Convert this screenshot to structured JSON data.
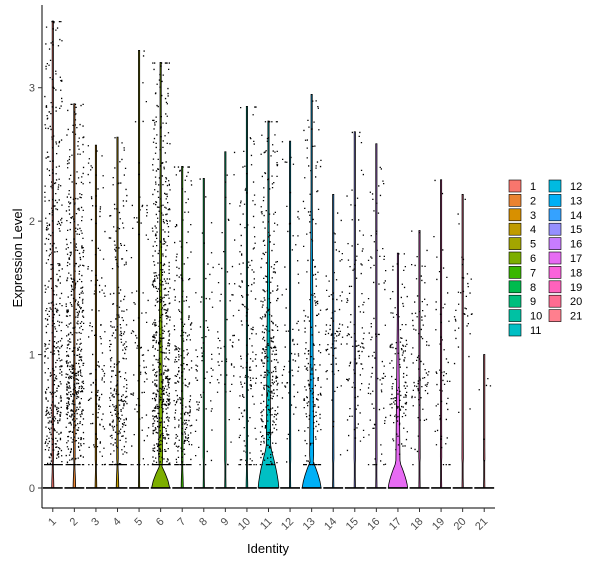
{
  "chart_data": {
    "type": "violin",
    "xlabel": "Identity",
    "ylabel": "Expression Level",
    "ylim": [
      -0.15,
      3.62
    ],
    "yticks": [
      0,
      1,
      2,
      3
    ],
    "categories": [
      "1",
      "2",
      "3",
      "4",
      "5",
      "6",
      "7",
      "8",
      "9",
      "10",
      "11",
      "12",
      "13",
      "14",
      "15",
      "16",
      "17",
      "18",
      "19",
      "20",
      "21"
    ],
    "colors": [
      "#F8766D",
      "#EA8331",
      "#D89000",
      "#C09B00",
      "#A3A500",
      "#7CAE00",
      "#39B600",
      "#00BB4E",
      "#00BF7D",
      "#00C1A3",
      "#00BFC4",
      "#00BAE0",
      "#00B0F6",
      "#35A2FF",
      "#9590FF",
      "#C77CFF",
      "#E76BF3",
      "#FA62DB",
      "#FF62BC",
      "#FF6C91",
      "#FF7F8E"
    ],
    "max_values": [
      3.5,
      2.88,
      2.57,
      2.63,
      3.28,
      3.19,
      2.41,
      2.32,
      2.52,
      2.86,
      2.75,
      2.6,
      2.95,
      2.2,
      2.67,
      2.58,
      1.76,
      1.93,
      2.31,
      2.2,
      1.0
    ],
    "violin_halfwidth": [
      0.05,
      0.06,
      0.04,
      0.06,
      0.03,
      0.42,
      0.05,
      0.03,
      0.03,
      0.04,
      0.48,
      0.03,
      0.44,
      0.03,
      0.03,
      0.03,
      0.45,
      0.03,
      0.03,
      0.03,
      0.03
    ],
    "violin_hump_top": [
      0.2,
      0.2,
      0.2,
      0.2,
      0.2,
      0.16,
      0.2,
      0.2,
      0.2,
      0.2,
      0.32,
      0.2,
      0.2,
      0.2,
      0.2,
      0.2,
      0.2,
      0.2,
      0.2,
      0.2,
      0.2
    ],
    "point_counts": [
      520,
      560,
      130,
      290,
      90,
      640,
      260,
      70,
      60,
      160,
      330,
      70,
      200,
      80,
      110,
      90,
      130,
      90,
      60,
      40,
      6
    ],
    "point_center": [
      0.7,
      0.9,
      0.9,
      0.7,
      1.1,
      0.9,
      0.7,
      1.0,
      1.1,
      1.0,
      1.0,
      1.1,
      0.9,
      1.2,
      1.1,
      1.0,
      0.8,
      0.9,
      0.9,
      1.4,
      0.8
    ],
    "legend": {
      "placement": "right",
      "columns": 2,
      "labels": [
        "1",
        "2",
        "3",
        "4",
        "5",
        "6",
        "7",
        "8",
        "9",
        "10",
        "11",
        "12",
        "13",
        "14",
        "15",
        "16",
        "17",
        "18",
        "19",
        "20",
        "21"
      ]
    }
  }
}
